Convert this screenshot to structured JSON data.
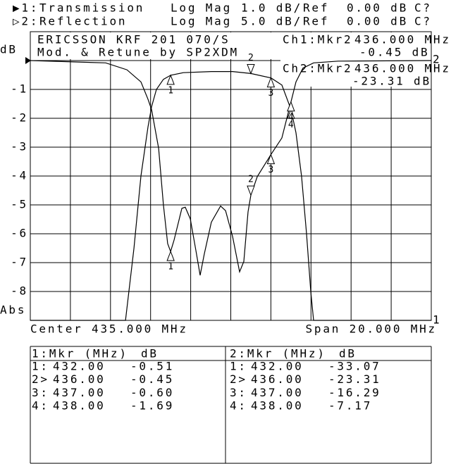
{
  "chart_data": {
    "type": "line",
    "y_unit": "dB",
    "y_mode": "Abs",
    "xlim": [
      425,
      445
    ],
    "ylim": [
      -9,
      1
    ],
    "y2lim": [
      -45,
      5
    ],
    "yticks": [
      -1,
      -2,
      -3,
      -4,
      -5,
      -6,
      -7,
      -8
    ],
    "divisions": 10,
    "grid": true,
    "reference_level": 0,
    "center_label": "Center 435.000 MHz",
    "span_label": "Span 20.000 MHz",
    "annotations": [
      "ERICSSON KRF 201 070/S",
      "Mod. & Retune by SP2XDM"
    ],
    "readouts": [
      {
        "label": "Ch1:Mkr2",
        "freq": "436.000 MHz",
        "value": "-0.45 dB"
      },
      {
        "label": "Ch2:Mkr2",
        "freq": "436.000 MHz",
        "value": "-23.31 dB"
      }
    ],
    "series": [
      {
        "channel_label": "▶1:",
        "name": "Transmission",
        "format": "Log Mag",
        "scale_label": "1.0 dB/",
        "ref_label": "Ref",
        "ref_value_label": "0.00 dB",
        "status": "C?",
        "position_label": "1",
        "color": "#000000",
        "x": [
          425,
          429.75,
          430.17,
          430.52,
          430.87,
          431.05,
          431.29,
          431.64,
          432,
          432.63,
          434.03,
          435.09,
          436,
          437,
          437.55,
          438,
          438.25,
          438.53,
          438.78,
          438.99,
          439.13,
          445
        ],
        "values": [
          -9,
          -9,
          -6.5,
          -4.0,
          -2.3,
          -1.6,
          -1.0,
          -0.65,
          -0.51,
          -0.42,
          -0.38,
          -0.38,
          -0.45,
          -0.6,
          -0.85,
          -1.69,
          -2.5,
          -4.0,
          -6.0,
          -8.0,
          -9,
          -9
        ],
        "markers": {
          "table_header": [
            "1:Mkr (MHz)",
            "dB"
          ],
          "names": [
            "1:",
            "2>",
            "3:",
            "4:"
          ],
          "symbols": [
            "1",
            "2",
            "3",
            "4"
          ],
          "x": [
            432,
            436,
            437,
            438
          ],
          "x_labels": [
            "432.00",
            "436.00",
            "437.00",
            "438.00"
          ],
          "values": [
            -0.51,
            -0.45,
            -0.6,
            -1.69
          ],
          "value_labels": [
            "-0.51",
            "-0.45",
            "-0.60",
            "-1.69"
          ]
        }
      },
      {
        "channel_label": "▷2:",
        "name": "Reflection",
        "format": "Log Mag",
        "scale_label": "5.0 dB/",
        "ref_label": "Ref",
        "ref_value_label": "0.00 dB",
        "status": "C?",
        "position_label": "2",
        "color": "#000000",
        "axis": "y2",
        "x": [
          425,
          428.76,
          429.82,
          430.52,
          430.87,
          431.05,
          431.4,
          431.64,
          431.85,
          432,
          432.17,
          432.56,
          432.73,
          432.98,
          433.26,
          433.47,
          433.68,
          434.03,
          434.49,
          434.74,
          435.09,
          435.44,
          435.65,
          435.86,
          436,
          436.32,
          437,
          437.55,
          438,
          438.25,
          438.6,
          439.13,
          440.36,
          445
        ],
        "values": [
          0,
          -0.4,
          -1.6,
          -3.7,
          -6.7,
          -8.5,
          -15.2,
          -25,
          -31.7,
          -33.07,
          -31.1,
          -25.6,
          -25.4,
          -27.4,
          -32.9,
          -37.2,
          -33.5,
          -28,
          -25.2,
          -26,
          -30.5,
          -36.6,
          -34.8,
          -26.2,
          -23.31,
          -20.1,
          -16.29,
          -13.4,
          -7.17,
          -3.7,
          -1.3,
          -0.4,
          -0.1,
          0
        ],
        "markers": {
          "table_header": [
            "2:Mkr (MHz)",
            "dB"
          ],
          "names": [
            "1:",
            "2>",
            "3:",
            "4:"
          ],
          "symbols": [
            "1",
            "2",
            "3",
            "4"
          ],
          "x": [
            432,
            436,
            437,
            438
          ],
          "x_labels": [
            "432.00",
            "436.00",
            "437.00",
            "438.00"
          ],
          "values": [
            -33.07,
            -23.31,
            -16.29,
            -7.17
          ],
          "value_labels": [
            "-33.07",
            "-23.31",
            "-16.29",
            "-7.17"
          ]
        }
      }
    ]
  }
}
